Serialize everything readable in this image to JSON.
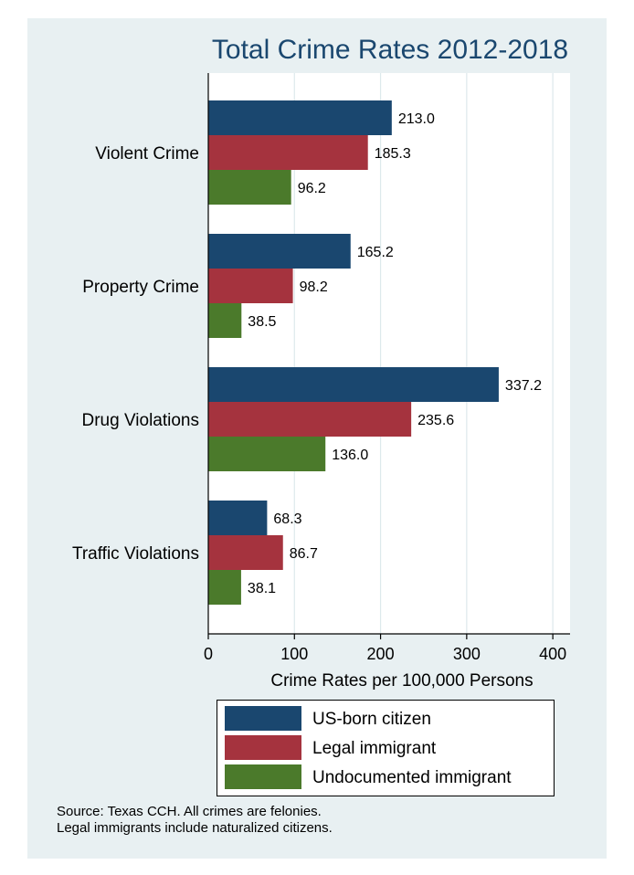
{
  "chart_data": {
    "type": "bar",
    "orientation": "horizontal",
    "title": "Total Crime Rates 2012-2018",
    "xlabel": "Crime Rates per 100,000 Persons",
    "ylabel": "",
    "xlim": [
      0,
      420
    ],
    "xticks": [
      0,
      100,
      200,
      300,
      400
    ],
    "grid": true,
    "categories": [
      "Violent Crime",
      "Property Crime",
      "Drug Violations",
      "Traffic Violations"
    ],
    "series": [
      {
        "name": "US-born citizen",
        "color": "#1a476f",
        "values": [
          213.0,
          165.2,
          337.2,
          68.3
        ],
        "labels": [
          "213.0",
          "165.2",
          "337.2",
          "68.3"
        ]
      },
      {
        "name": "Legal immigrant",
        "color": "#a5333e",
        "values": [
          185.3,
          98.2,
          235.6,
          86.7
        ],
        "labels": [
          "185.3",
          "98.2",
          "235.6",
          "86.7"
        ]
      },
      {
        "name": "Undocumented immigrant",
        "color": "#4b7a2b",
        "values": [
          96.2,
          38.5,
          136.0,
          38.1
        ],
        "labels": [
          "96.2",
          "38.5",
          "136.0",
          "38.1"
        ]
      }
    ],
    "legend_position": "bottom",
    "notes": [
      "Source: Texas CCH. All crimes are felonies.",
      "Legal immigrants include naturalized citizens."
    ]
  }
}
